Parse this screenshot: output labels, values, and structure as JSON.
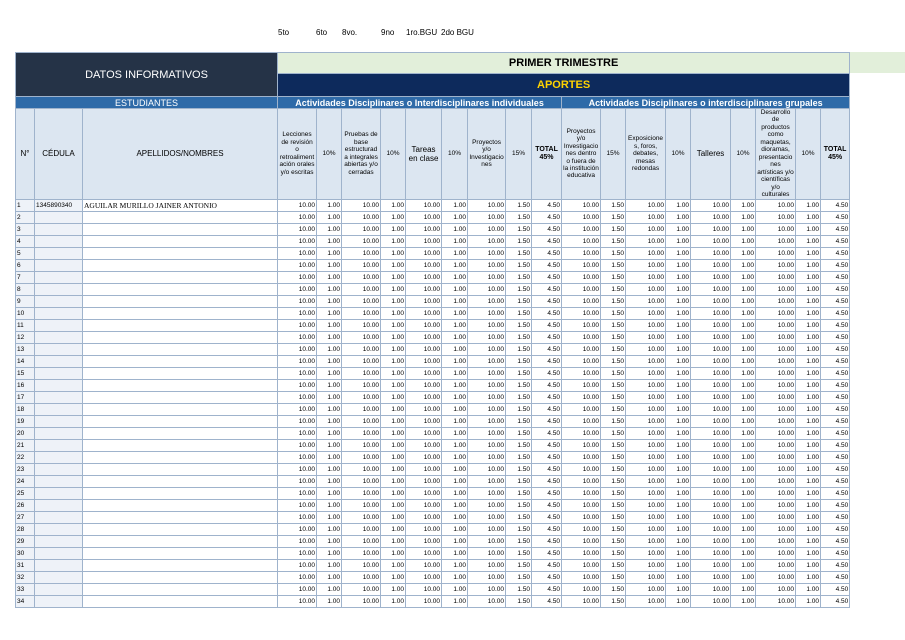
{
  "top_labels": [
    "5to",
    "6to",
    "8vo.",
    "9no",
    "1ro.BGU",
    "2do BGU"
  ],
  "header": {
    "datos": "DATOS INFORMATIVOS",
    "trimestre": "PRIMER TRIMESTRE",
    "aportes": "APORTES",
    "estudiantes": "ESTUDIANTES",
    "individual": "Actividades Disciplinares o Interdisciplinares individuales",
    "grupal": "Actividades Disciplinares o interdisciplinares grupales",
    "columns": [
      "N°",
      "CÉDULA",
      "APELLIDOS/NOMBRES",
      "Lecciones de revisión o retroalimentación orales y/o escritas",
      "10%",
      "Pruebas de base estructurada integrales abiertas y/o cerradas",
      "10%",
      "Tareas en clase",
      "10%",
      "Proyectos y/o Investigaciones",
      "15%",
      "TOTAL 45%",
      "Proyectos y/o Investigaciones dentro o fuera de la institución educativa",
      "15%",
      "Exposiciones, foros, debates, mesas redondas",
      "10%",
      "Talleres",
      "10%",
      "Desarrollo de productos como maquetas, dioramas, presentaciones artísticas y/o científicas y/o culturales",
      "10%",
      "TOTAL 45%"
    ]
  },
  "rows": [
    {
      "n": 1,
      "cedula": "1345890340",
      "nombre": "AGUILAR MURILLO JAINER ANTONIO",
      "values": [
        "10.00",
        "1.00",
        "10.00",
        "1.00",
        "10.00",
        "1.00",
        "10.00",
        "1.50",
        "4.50",
        "10.00",
        "1.50",
        "10.00",
        "1.00",
        "10.00",
        "1.00",
        "10.00",
        "1.00",
        "4.50"
      ]
    },
    {
      "n": 2,
      "values": [
        "10.00",
        "1.00",
        "10.00",
        "1.00",
        "10.00",
        "1.00",
        "10.00",
        "1.50",
        "4.50",
        "10.00",
        "1.50",
        "10.00",
        "1.00",
        "10.00",
        "1.00",
        "10.00",
        "1.00",
        "4.50"
      ]
    },
    {
      "n": 3,
      "values": [
        "10.00",
        "1.00",
        "10.00",
        "1.00",
        "10.00",
        "1.00",
        "10.00",
        "1.50",
        "4.50",
        "10.00",
        "1.50",
        "10.00",
        "1.00",
        "10.00",
        "1.00",
        "10.00",
        "1.00",
        "4.50"
      ]
    },
    {
      "n": 4,
      "values": [
        "10.00",
        "1.00",
        "10.00",
        "1.00",
        "10.00",
        "1.00",
        "10.00",
        "1.50",
        "4.50",
        "10.00",
        "1.50",
        "10.00",
        "1.00",
        "10.00",
        "1.00",
        "10.00",
        "1.00",
        "4.50"
      ]
    },
    {
      "n": 5,
      "values": [
        "10.00",
        "1.00",
        "10.00",
        "1.00",
        "10.00",
        "1.00",
        "10.00",
        "1.50",
        "4.50",
        "10.00",
        "1.50",
        "10.00",
        "1.00",
        "10.00",
        "1.00",
        "10.00",
        "1.00",
        "4.50"
      ]
    },
    {
      "n": 6,
      "values": [
        "10.00",
        "1.00",
        "10.00",
        "1.00",
        "10.00",
        "1.00",
        "10.00",
        "1.50",
        "4.50",
        "10.00",
        "1.50",
        "10.00",
        "1.00",
        "10.00",
        "1.00",
        "10.00",
        "1.00",
        "4.50"
      ]
    },
    {
      "n": 7,
      "values": [
        "10.00",
        "1.00",
        "10.00",
        "1.00",
        "10.00",
        "1.00",
        "10.00",
        "1.50",
        "4.50",
        "10.00",
        "1.50",
        "10.00",
        "1.00",
        "10.00",
        "1.00",
        "10.00",
        "1.00",
        "4.50"
      ]
    },
    {
      "n": 8,
      "values": [
        "10.00",
        "1.00",
        "10.00",
        "1.00",
        "10.00",
        "1.00",
        "10.00",
        "1.50",
        "4.50",
        "10.00",
        "1.50",
        "10.00",
        "1.00",
        "10.00",
        "1.00",
        "10.00",
        "1.00",
        "4.50"
      ]
    },
    {
      "n": 9,
      "values": [
        "10.00",
        "1.00",
        "10.00",
        "1.00",
        "10.00",
        "1.00",
        "10.00",
        "1.50",
        "4.50",
        "10.00",
        "1.50",
        "10.00",
        "1.00",
        "10.00",
        "1.00",
        "10.00",
        "1.00",
        "4.50"
      ]
    },
    {
      "n": 10,
      "values": [
        "10.00",
        "1.00",
        "10.00",
        "1.00",
        "10.00",
        "1.00",
        "10.00",
        "1.50",
        "4.50",
        "10.00",
        "1.50",
        "10.00",
        "1.00",
        "10.00",
        "1.00",
        "10.00",
        "1.00",
        "4.50"
      ]
    },
    {
      "n": 11,
      "values": [
        "10.00",
        "1.00",
        "10.00",
        "1.00",
        "10.00",
        "1.00",
        "10.00",
        "1.50",
        "4.50",
        "10.00",
        "1.50",
        "10.00",
        "1.00",
        "10.00",
        "1.00",
        "10.00",
        "1.00",
        "4.50"
      ]
    },
    {
      "n": 12,
      "values": [
        "10.00",
        "1.00",
        "10.00",
        "1.00",
        "10.00",
        "1.00",
        "10.00",
        "1.50",
        "4.50",
        "10.00",
        "1.50",
        "10.00",
        "1.00",
        "10.00",
        "1.00",
        "10.00",
        "1.00",
        "4.50"
      ]
    },
    {
      "n": 13,
      "values": [
        "10.00",
        "1.00",
        "10.00",
        "1.00",
        "10.00",
        "1.00",
        "10.00",
        "1.50",
        "4.50",
        "10.00",
        "1.50",
        "10.00",
        "1.00",
        "10.00",
        "1.00",
        "10.00",
        "1.00",
        "4.50"
      ]
    },
    {
      "n": 14,
      "values": [
        "10.00",
        "1.00",
        "10.00",
        "1.00",
        "10.00",
        "1.00",
        "10.00",
        "1.50",
        "4.50",
        "10.00",
        "1.50",
        "10.00",
        "1.00",
        "10.00",
        "1.00",
        "10.00",
        "1.00",
        "4.50"
      ]
    },
    {
      "n": 15,
      "values": [
        "10.00",
        "1.00",
        "10.00",
        "1.00",
        "10.00",
        "1.00",
        "10.00",
        "1.50",
        "4.50",
        "10.00",
        "1.50",
        "10.00",
        "1.00",
        "10.00",
        "1.00",
        "10.00",
        "1.00",
        "4.50"
      ]
    },
    {
      "n": 16,
      "values": [
        "10.00",
        "1.00",
        "10.00",
        "1.00",
        "10.00",
        "1.00",
        "10.00",
        "1.50",
        "4.50",
        "10.00",
        "1.50",
        "10.00",
        "1.00",
        "10.00",
        "1.00",
        "10.00",
        "1.00",
        "4.50"
      ]
    },
    {
      "n": 17,
      "values": [
        "10.00",
        "1.00",
        "10.00",
        "1.00",
        "10.00",
        "1.00",
        "10.00",
        "1.50",
        "4.50",
        "10.00",
        "1.50",
        "10.00",
        "1.00",
        "10.00",
        "1.00",
        "10.00",
        "1.00",
        "4.50"
      ]
    },
    {
      "n": 18,
      "values": [
        "10.00",
        "1.00",
        "10.00",
        "1.00",
        "10.00",
        "1.00",
        "10.00",
        "1.50",
        "4.50",
        "10.00",
        "1.50",
        "10.00",
        "1.00",
        "10.00",
        "1.00",
        "10.00",
        "1.00",
        "4.50"
      ]
    },
    {
      "n": 19,
      "values": [
        "10.00",
        "1.00",
        "10.00",
        "1.00",
        "10.00",
        "1.00",
        "10.00",
        "1.50",
        "4.50",
        "10.00",
        "1.50",
        "10.00",
        "1.00",
        "10.00",
        "1.00",
        "10.00",
        "1.00",
        "4.50"
      ]
    },
    {
      "n": 20,
      "values": [
        "10.00",
        "1.00",
        "10.00",
        "1.00",
        "10.00",
        "1.00",
        "10.00",
        "1.50",
        "4.50",
        "10.00",
        "1.50",
        "10.00",
        "1.00",
        "10.00",
        "1.00",
        "10.00",
        "1.00",
        "4.50"
      ]
    },
    {
      "n": 21,
      "values": [
        "10.00",
        "1.00",
        "10.00",
        "1.00",
        "10.00",
        "1.00",
        "10.00",
        "1.50",
        "4.50",
        "10.00",
        "1.50",
        "10.00",
        "1.00",
        "10.00",
        "1.00",
        "10.00",
        "1.00",
        "4.50"
      ]
    },
    {
      "n": 22,
      "values": [
        "10.00",
        "1.00",
        "10.00",
        "1.00",
        "10.00",
        "1.00",
        "10.00",
        "1.50",
        "4.50",
        "10.00",
        "1.50",
        "10.00",
        "1.00",
        "10.00",
        "1.00",
        "10.00",
        "1.00",
        "4.50"
      ]
    },
    {
      "n": 23,
      "values": [
        "10.00",
        "1.00",
        "10.00",
        "1.00",
        "10.00",
        "1.00",
        "10.00",
        "1.50",
        "4.50",
        "10.00",
        "1.50",
        "10.00",
        "1.00",
        "10.00",
        "1.00",
        "10.00",
        "1.00",
        "4.50"
      ]
    },
    {
      "n": 24,
      "values": [
        "10.00",
        "1.00",
        "10.00",
        "1.00",
        "10.00",
        "1.00",
        "10.00",
        "1.50",
        "4.50",
        "10.00",
        "1.50",
        "10.00",
        "1.00",
        "10.00",
        "1.00",
        "10.00",
        "1.00",
        "4.50"
      ]
    },
    {
      "n": 25,
      "values": [
        "10.00",
        "1.00",
        "10.00",
        "1.00",
        "10.00",
        "1.00",
        "10.00",
        "1.50",
        "4.50",
        "10.00",
        "1.50",
        "10.00",
        "1.00",
        "10.00",
        "1.00",
        "10.00",
        "1.00",
        "4.50"
      ]
    },
    {
      "n": 26,
      "values": [
        "10.00",
        "1.00",
        "10.00",
        "1.00",
        "10.00",
        "1.00",
        "10.00",
        "1.50",
        "4.50",
        "10.00",
        "1.50",
        "10.00",
        "1.00",
        "10.00",
        "1.00",
        "10.00",
        "1.00",
        "4.50"
      ]
    },
    {
      "n": 27,
      "values": [
        "10.00",
        "1.00",
        "10.00",
        "1.00",
        "10.00",
        "1.00",
        "10.00",
        "1.50",
        "4.50",
        "10.00",
        "1.50",
        "10.00",
        "1.00",
        "10.00",
        "1.00",
        "10.00",
        "1.00",
        "4.50"
      ]
    },
    {
      "n": 28,
      "values": [
        "10.00",
        "1.00",
        "10.00",
        "1.00",
        "10.00",
        "1.00",
        "10.00",
        "1.50",
        "4.50",
        "10.00",
        "1.50",
        "10.00",
        "1.00",
        "10.00",
        "1.00",
        "10.00",
        "1.00",
        "4.50"
      ]
    },
    {
      "n": 29,
      "values": [
        "10.00",
        "1.00",
        "10.00",
        "1.00",
        "10.00",
        "1.00",
        "10.00",
        "1.50",
        "4.50",
        "10.00",
        "1.50",
        "10.00",
        "1.00",
        "10.00",
        "1.00",
        "10.00",
        "1.00",
        "4.50"
      ]
    },
    {
      "n": 30,
      "values": [
        "10.00",
        "1.00",
        "10.00",
        "1.00",
        "10.00",
        "1.00",
        "10.00",
        "1.50",
        "4.50",
        "10.00",
        "1.50",
        "10.00",
        "1.00",
        "10.00",
        "1.00",
        "10.00",
        "1.00",
        "4.50"
      ]
    },
    {
      "n": 31,
      "values": [
        "10.00",
        "1.00",
        "10.00",
        "1.00",
        "10.00",
        "1.00",
        "10.00",
        "1.50",
        "4.50",
        "10.00",
        "1.50",
        "10.00",
        "1.00",
        "10.00",
        "1.00",
        "10.00",
        "1.00",
        "4.50"
      ]
    },
    {
      "n": 32,
      "values": [
        "10.00",
        "1.00",
        "10.00",
        "1.00",
        "10.00",
        "1.00",
        "10.00",
        "1.50",
        "4.50",
        "10.00",
        "1.50",
        "10.00",
        "1.00",
        "10.00",
        "1.00",
        "10.00",
        "1.00",
        "4.50"
      ]
    },
    {
      "n": 33,
      "values": [
        "10.00",
        "1.00",
        "10.00",
        "1.00",
        "10.00",
        "1.00",
        "10.00",
        "1.50",
        "4.50",
        "10.00",
        "1.50",
        "10.00",
        "1.00",
        "10.00",
        "1.00",
        "10.00",
        "1.00",
        "4.50"
      ]
    },
    {
      "n": 34,
      "values": [
        "10.00",
        "1.00",
        "10.00",
        "1.00",
        "10.00",
        "1.00",
        "10.00",
        "1.50",
        "4.50",
        "10.00",
        "1.50",
        "10.00",
        "1.00",
        "10.00",
        "1.00",
        "10.00",
        "1.00",
        "4.50"
      ]
    }
  ]
}
